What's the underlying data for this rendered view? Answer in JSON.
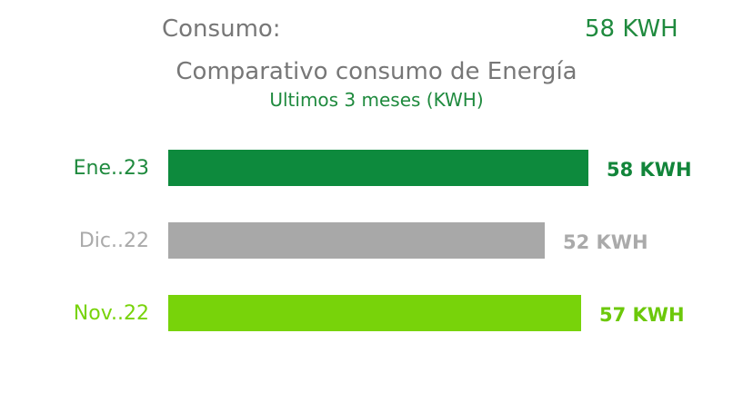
{
  "header": {
    "consumo_label": "Consumo:",
    "consumo_value": "58 KWH"
  },
  "chart_data": {
    "type": "bar",
    "orientation": "horizontal",
    "title": "Comparativo consumo de Energía",
    "subtitle": "Ultimos 3 meses (KWH)",
    "categories": [
      "Ene..23",
      "Dic..22",
      "Nov..22"
    ],
    "values": [
      58,
      52,
      57
    ],
    "value_labels": [
      "58 KWH",
      "52 KWH",
      "57 KWH"
    ],
    "colors": [
      "#0d8a3d",
      "#a8a8a8",
      "#78d30a"
    ],
    "label_colors": [
      "#1f8a3e",
      "#aaaaaa",
      "#78d30a"
    ],
    "value_label_colors": [
      "#12853a",
      "#aaaaaa",
      "#6cc80a"
    ],
    "xlim": [
      0,
      58
    ],
    "grid": false,
    "legend": "none"
  }
}
